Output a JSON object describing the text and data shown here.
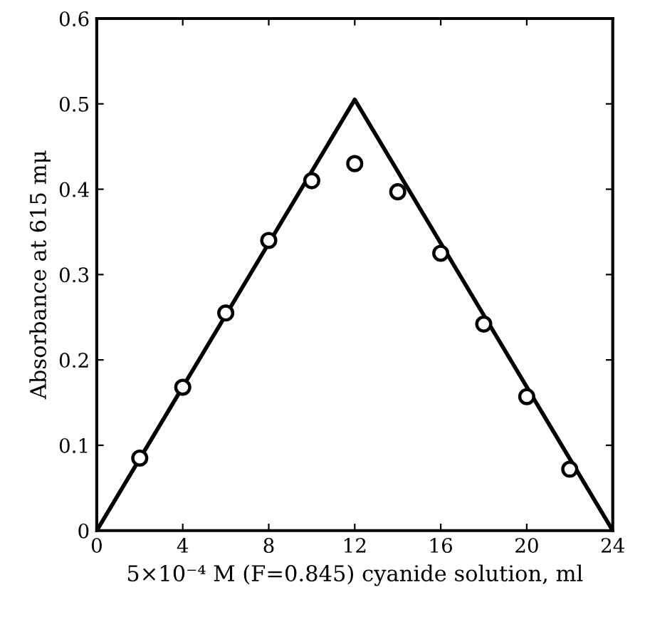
{
  "chart_data": {
    "type": "scatter",
    "xlabel": "5×10⁻⁴ M (F=0.845) cyanide solution, ml",
    "ylabel": "Absorbance at 615 mμ",
    "xlim": [
      0,
      24
    ],
    "ylim": [
      0,
      0.6
    ],
    "xticks": [
      0,
      4,
      8,
      12,
      16,
      20,
      24
    ],
    "yticks": [
      0,
      0.1,
      0.2,
      0.3,
      0.4,
      0.5,
      0.6
    ],
    "grid": false,
    "legend": false,
    "series": [
      {
        "color": "#000000",
        "marker": "circle",
        "x": [
          2,
          4,
          6,
          8,
          10,
          12,
          14,
          16,
          18,
          20,
          22
        ],
        "values": [
          0.085,
          0.168,
          0.255,
          0.34,
          0.41,
          0.43,
          0.397,
          0.325,
          0.242,
          0.157,
          0.072
        ]
      },
      {
        "type": "line",
        "color": "#000000",
        "marker": "none",
        "line_style": "solid",
        "x": [
          0,
          12,
          24
        ],
        "values": [
          0,
          0.505,
          0
        ]
      }
    ]
  }
}
